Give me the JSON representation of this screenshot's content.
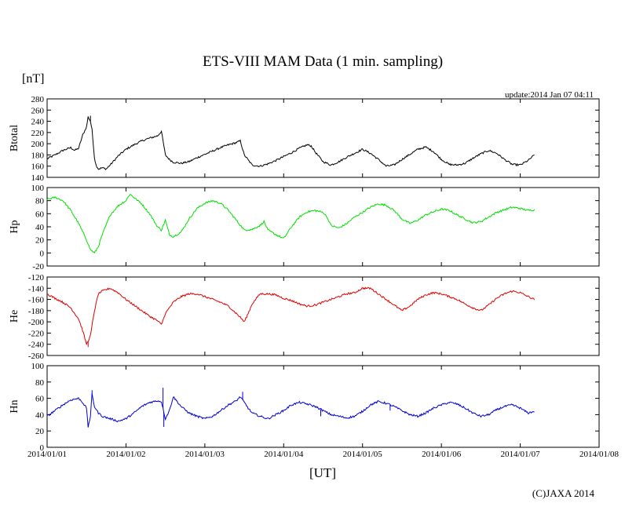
{
  "title": "ETS-VIII MAM Data (1 min. sampling)",
  "unit_label": "[nT]",
  "update_text": "update:2014 Jan 07 04:11",
  "x_axis_label": "[UT]",
  "credit": "(C)JAXA 2014",
  "colors": {
    "btotal": "#000000",
    "hp": "#00e000",
    "he": "#e00000",
    "hn": "#0000d0"
  },
  "chart_data": {
    "type": "line",
    "x_ticks": [
      "2014/01/01",
      "2014/01/02",
      "2014/01/03",
      "2014/01/04",
      "2014/01/05",
      "2014/01/06",
      "2014/01/07",
      "2014/01/08"
    ],
    "x_range_days": [
      0,
      7
    ],
    "panels": [
      {
        "name": "btotal",
        "ylabel": "Btotal",
        "ylim": [
          140,
          280
        ],
        "yticks": [
          "280",
          "260",
          "240",
          "220",
          "200",
          "180",
          "160",
          "140"
        ],
        "series": {
          "name": "Btotal",
          "x_days": [
            0,
            0.1,
            0.2,
            0.3,
            0.35,
            0.4,
            0.45,
            0.5,
            0.52,
            0.55,
            0.57,
            0.6,
            0.62,
            0.65,
            0.7,
            0.75,
            0.8,
            0.9,
            1.0,
            1.1,
            1.2,
            1.3,
            1.4,
            1.45,
            1.5,
            1.55,
            1.6,
            1.7,
            1.8,
            1.9,
            2.0,
            2.1,
            2.2,
            2.3,
            2.4,
            2.45,
            2.5,
            2.6,
            2.7,
            2.8,
            2.9,
            3.0,
            3.1,
            3.2,
            3.3,
            3.35,
            3.4,
            3.5,
            3.6,
            3.7,
            3.8,
            3.9,
            4.0,
            4.1,
            4.2,
            4.3,
            4.4,
            4.5,
            4.6,
            4.7,
            4.8,
            4.9,
            5.0,
            5.1,
            5.2,
            5.3,
            5.4,
            5.5,
            5.6,
            5.7,
            5.8,
            5.9,
            6.0,
            6.1,
            6.18
          ],
          "values": [
            173,
            180,
            188,
            193,
            188,
            192,
            215,
            230,
            248,
            240,
            225,
            175,
            162,
            155,
            157,
            155,
            162,
            178,
            190,
            198,
            205,
            210,
            214,
            222,
            180,
            172,
            167,
            165,
            168,
            175,
            181,
            187,
            193,
            198,
            202,
            205,
            180,
            162,
            160,
            164,
            170,
            177,
            184,
            192,
            198,
            196,
            185,
            168,
            162,
            168,
            176,
            183,
            190,
            183,
            172,
            160,
            162,
            172,
            181,
            190,
            194,
            186,
            172,
            163,
            162,
            165,
            174,
            182,
            188,
            183,
            172,
            163,
            162,
            170,
            180
          ]
        }
      },
      {
        "name": "hp",
        "ylabel": "Hp",
        "ylim": [
          -20,
          100
        ],
        "yticks": [
          "100",
          "80",
          "60",
          "40",
          "20",
          "0",
          "-20"
        ],
        "series": {
          "name": "Hp",
          "x_days": [
            0,
            0.1,
            0.2,
            0.3,
            0.4,
            0.5,
            0.55,
            0.6,
            0.65,
            0.7,
            0.8,
            0.9,
            1.0,
            1.05,
            1.1,
            1.2,
            1.3,
            1.35,
            1.4,
            1.45,
            1.5,
            1.55,
            1.6,
            1.7,
            1.8,
            1.9,
            2.0,
            2.1,
            2.2,
            2.3,
            2.4,
            2.5,
            2.6,
            2.7,
            2.75,
            2.8,
            2.9,
            3.0,
            3.1,
            3.2,
            3.3,
            3.4,
            3.5,
            3.55,
            3.6,
            3.7,
            3.8,
            3.9,
            4.0,
            4.1,
            4.2,
            4.3,
            4.4,
            4.5,
            4.6,
            4.7,
            4.8,
            4.9,
            5.0,
            5.1,
            5.2,
            5.3,
            5.4,
            5.5,
            5.6,
            5.7,
            5.8,
            5.9,
            6.0,
            6.1,
            6.18
          ],
          "values": [
            82,
            85,
            80,
            65,
            45,
            20,
            5,
            0,
            10,
            28,
            58,
            72,
            80,
            90,
            85,
            75,
            60,
            50,
            40,
            35,
            50,
            28,
            25,
            32,
            52,
            68,
            76,
            80,
            76,
            65,
            50,
            35,
            36,
            42,
            48,
            35,
            28,
            22,
            40,
            55,
            63,
            65,
            62,
            55,
            42,
            38,
            45,
            55,
            62,
            70,
            75,
            73,
            65,
            52,
            45,
            50,
            58,
            63,
            67,
            65,
            58,
            52,
            46,
            48,
            55,
            62,
            66,
            70,
            68,
            65,
            66
          ]
        }
      },
      {
        "name": "he",
        "ylabel": "He",
        "ylim": [
          -260,
          -120
        ],
        "yticks": [
          "-120",
          "-140",
          "-160",
          "-180",
          "-200",
          "-220",
          "-240",
          "-260"
        ],
        "series": {
          "name": "He",
          "x_days": [
            0,
            0.1,
            0.2,
            0.3,
            0.35,
            0.4,
            0.45,
            0.5,
            0.55,
            0.6,
            0.65,
            0.7,
            0.8,
            0.9,
            1.0,
            1.1,
            1.2,
            1.3,
            1.4,
            1.45,
            1.5,
            1.6,
            1.7,
            1.8,
            1.9,
            2.0,
            2.1,
            2.2,
            2.3,
            2.4,
            2.45,
            2.5,
            2.55,
            2.6,
            2.7,
            2.8,
            2.9,
            3.0,
            3.1,
            3.2,
            3.3,
            3.4,
            3.5,
            3.6,
            3.7,
            3.8,
            3.9,
            4.0,
            4.1,
            4.2,
            4.3,
            4.4,
            4.5,
            4.6,
            4.7,
            4.8,
            4.9,
            5.0,
            5.1,
            5.2,
            5.3,
            5.4,
            5.5,
            5.6,
            5.7,
            5.8,
            5.9,
            6.0,
            6.1,
            6.18
          ],
          "values": [
            -150,
            -158,
            -165,
            -175,
            -185,
            -195,
            -215,
            -240,
            -225,
            -180,
            -150,
            -145,
            -140,
            -148,
            -160,
            -170,
            -180,
            -190,
            -198,
            -205,
            -185,
            -165,
            -155,
            -150,
            -150,
            -155,
            -160,
            -165,
            -172,
            -185,
            -192,
            -200,
            -185,
            -168,
            -150,
            -150,
            -152,
            -158,
            -162,
            -168,
            -172,
            -170,
            -165,
            -160,
            -155,
            -150,
            -148,
            -140,
            -140,
            -150,
            -160,
            -170,
            -180,
            -172,
            -160,
            -152,
            -148,
            -150,
            -155,
            -160,
            -168,
            -175,
            -180,
            -170,
            -158,
            -150,
            -145,
            -148,
            -155,
            -160
          ]
        }
      },
      {
        "name": "hn",
        "ylabel": "Hn",
        "ylim": [
          0,
          100
        ],
        "yticks": [
          "100",
          "80",
          "60",
          "40",
          "20",
          "0"
        ],
        "series": {
          "name": "Hn",
          "x_days": [
            0,
            0.1,
            0.2,
            0.3,
            0.4,
            0.45,
            0.5,
            0.52,
            0.55,
            0.57,
            0.6,
            0.65,
            0.7,
            0.8,
            0.9,
            1.0,
            1.1,
            1.2,
            1.3,
            1.4,
            1.45,
            1.5,
            1.55,
            1.6,
            1.7,
            1.8,
            1.9,
            2.0,
            2.1,
            2.2,
            2.3,
            2.4,
            2.45,
            2.5,
            2.55,
            2.6,
            2.7,
            2.8,
            2.9,
            3.0,
            3.1,
            3.2,
            3.3,
            3.4,
            3.5,
            3.6,
            3.7,
            3.8,
            3.9,
            4.0,
            4.1,
            4.2,
            4.3,
            4.4,
            4.5,
            4.6,
            4.7,
            4.8,
            4.9,
            5.0,
            5.1,
            5.2,
            5.3,
            5.4,
            5.5,
            5.6,
            5.7,
            5.8,
            5.9,
            6.0,
            6.1,
            6.18
          ],
          "values": [
            38,
            45,
            52,
            58,
            60,
            55,
            48,
            25,
            38,
            65,
            50,
            42,
            38,
            35,
            32,
            35,
            42,
            50,
            55,
            57,
            56,
            35,
            45,
            62,
            50,
            42,
            38,
            35,
            38,
            45,
            52,
            57,
            62,
            55,
            48,
            42,
            38,
            35,
            40,
            45,
            52,
            55,
            53,
            50,
            45,
            40,
            38,
            36,
            38,
            44,
            52,
            56,
            54,
            50,
            45,
            40,
            38,
            42,
            48,
            52,
            55,
            53,
            48,
            42,
            38,
            40,
            46,
            50,
            52,
            48,
            42,
            44
          ]
        }
      }
    ],
    "notable_spikes": [
      {
        "panel": "hn",
        "x_day": 0.57,
        "value": 70
      },
      {
        "panel": "hn",
        "x_day": 1.47,
        "value": 73
      },
      {
        "panel": "hn",
        "x_day": 1.48,
        "value": 25
      },
      {
        "panel": "hn",
        "x_day": 2.48,
        "value": 68
      },
      {
        "panel": "hn",
        "x_day": 3.47,
        "value": 38
      },
      {
        "panel": "hn",
        "x_day": 4.35,
        "value": 45
      },
      {
        "panel": "btotal",
        "x_day": 0.55,
        "value": 250
      },
      {
        "panel": "he",
        "x_day": 0.52,
        "value": -245
      }
    ]
  }
}
